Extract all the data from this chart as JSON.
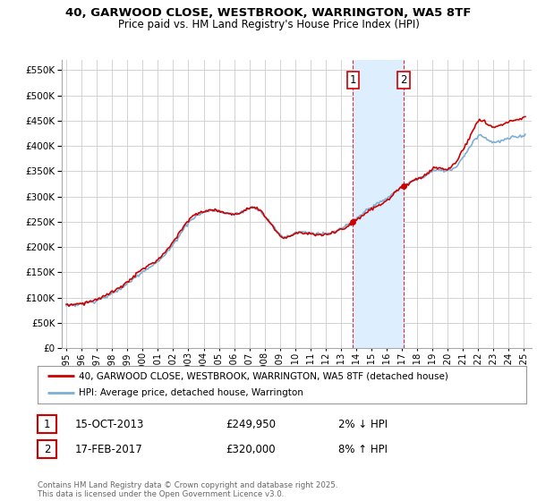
{
  "title_line1": "40, GARWOOD CLOSE, WESTBROOK, WARRINGTON, WA5 8TF",
  "title_line2": "Price paid vs. HM Land Registry's House Price Index (HPI)",
  "ytick_values": [
    0,
    50000,
    100000,
    150000,
    200000,
    250000,
    300000,
    350000,
    400000,
    450000,
    500000,
    550000
  ],
  "ylim": [
    0,
    570000
  ],
  "xlim_start": 1994.7,
  "xlim_end": 2025.5,
  "xtick_years": [
    1995,
    1996,
    1997,
    1998,
    1999,
    2000,
    2001,
    2002,
    2003,
    2004,
    2005,
    2006,
    2007,
    2008,
    2009,
    2010,
    2011,
    2012,
    2013,
    2014,
    2015,
    2016,
    2017,
    2018,
    2019,
    2020,
    2021,
    2022,
    2023,
    2024,
    2025
  ],
  "sale1_x": 2013.79,
  "sale1_y": 249950,
  "sale1_label": "1",
  "sale2_x": 2017.12,
  "sale2_y": 320000,
  "sale2_label": "2",
  "shade_x1": 2013.79,
  "shade_x2": 2017.12,
  "background_color": "#ffffff",
  "plot_background": "#ffffff",
  "grid_color": "#cccccc",
  "hpi_line_color": "#7bafd4",
  "price_line_color": "#cc0000",
  "sale_dot_color": "#cc0000",
  "shade_color": "#ddeeff",
  "vline_color": "#cc0000",
  "legend_label1": "40, GARWOOD CLOSE, WESTBROOK, WARRINGTON, WA5 8TF (detached house)",
  "legend_label2": "HPI: Average price, detached house, Warrington",
  "table_row1": [
    "1",
    "15-OCT-2013",
    "£249,950",
    "2% ↓ HPI"
  ],
  "table_row2": [
    "2",
    "17-FEB-2017",
    "£320,000",
    "8% ↑ HPI"
  ],
  "footnote": "Contains HM Land Registry data © Crown copyright and database right 2025.\nThis data is licensed under the Open Government Licence v3.0."
}
